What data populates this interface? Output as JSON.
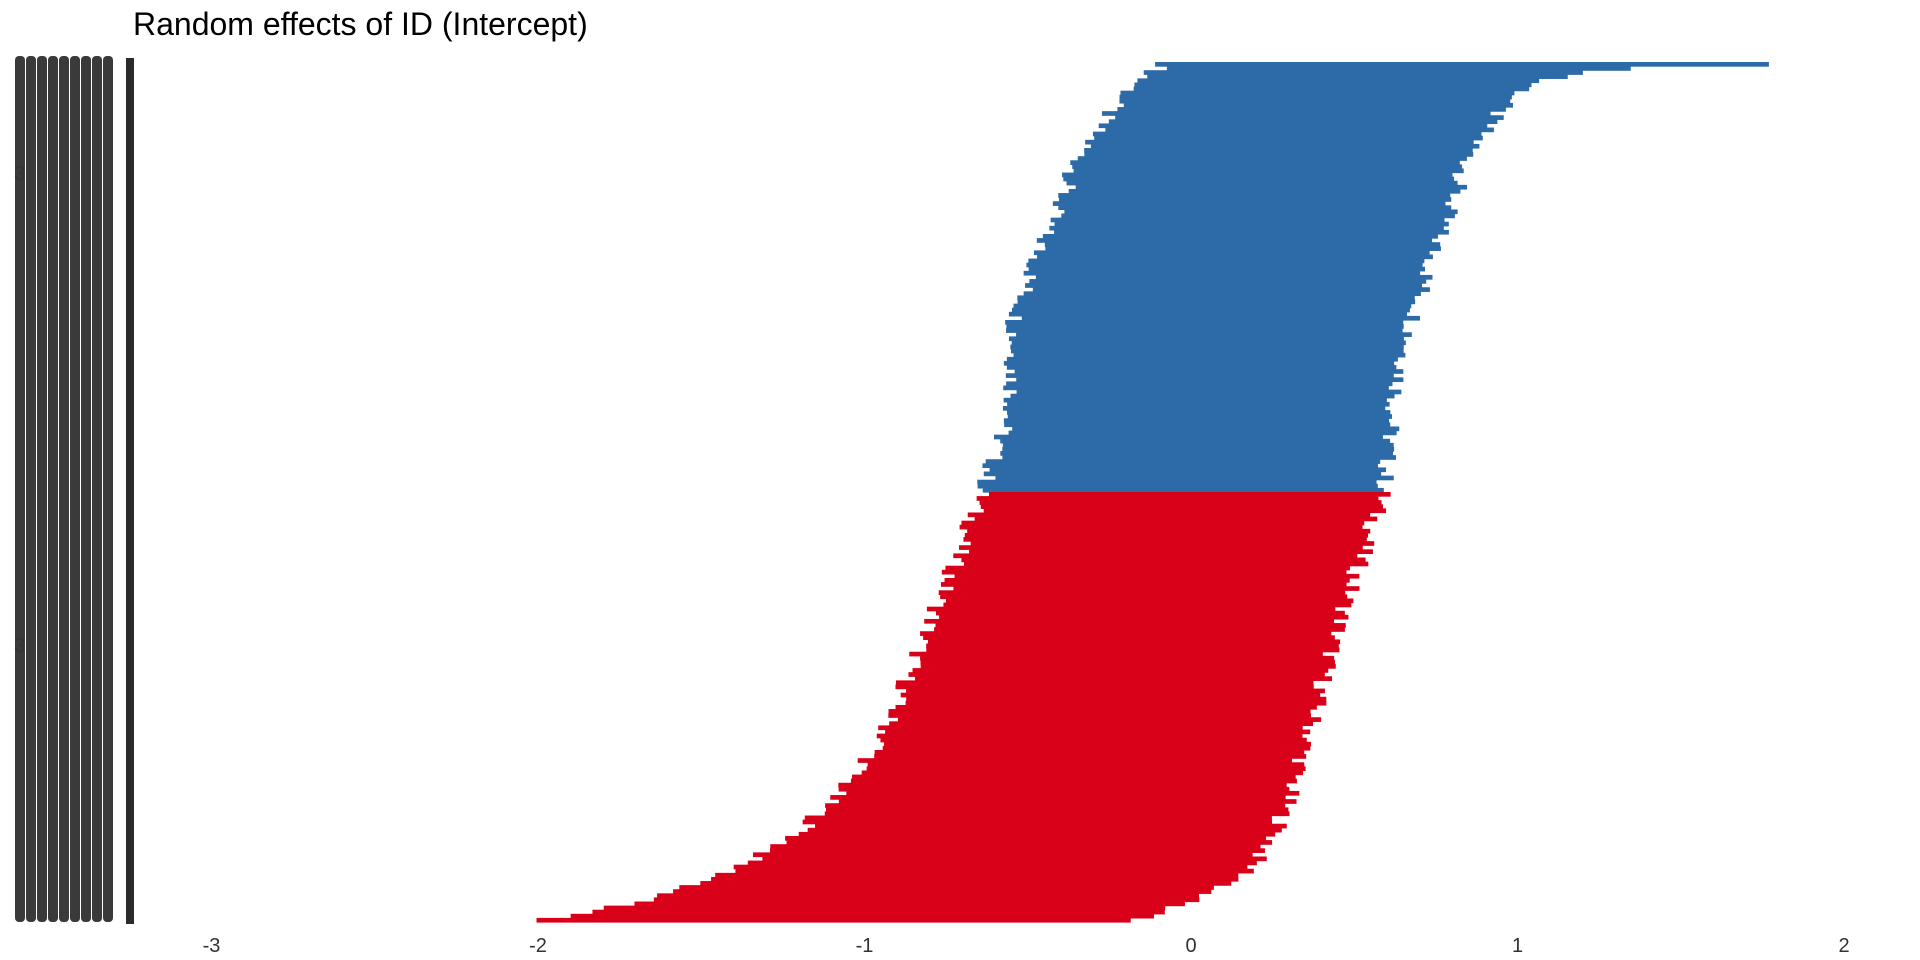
{
  "chart_data": {
    "type": "bar",
    "orientation": "horizontal",
    "title": "Random effects of ID (Intercept)",
    "xlabel": "",
    "ylabel": "",
    "xlim": [
      -3.3,
      2.05
    ],
    "x_ticks": [
      "-3",
      "-2",
      "-1",
      "0",
      "1",
      "2"
    ],
    "grid": false,
    "legend": "none",
    "sorted": "descending",
    "colors": {
      "positive": "#2d6ba8",
      "negative": "#d9001a",
      "text": "#333333",
      "ylabel_bar": "#2b2b2b"
    },
    "y_tick_labels_visible": [
      "3",
      "3"
    ],
    "series": [
      {
        "name": "",
        "profile_points": [
          [
            0.0,
            1.8
          ],
          [
            0.005,
            1.3
          ],
          [
            0.02,
            1.06
          ],
          [
            0.05,
            0.95
          ],
          [
            0.1,
            0.86
          ],
          [
            0.2,
            0.76
          ],
          [
            0.3,
            0.68
          ],
          [
            0.4,
            0.62
          ],
          [
            0.5,
            0.59
          ],
          [
            0.6,
            0.5
          ],
          [
            0.7,
            0.42
          ],
          [
            0.8,
            0.35
          ],
          [
            0.9,
            0.26
          ],
          [
            0.95,
            0.16
          ],
          [
            0.98,
            -0.02
          ],
          [
            1.0,
            -0.18
          ]
        ],
        "left_extent_points": [
          [
            0.0,
            -0.08
          ],
          [
            0.02,
            -0.16
          ],
          [
            0.05,
            -0.24
          ],
          [
            0.1,
            -0.33
          ],
          [
            0.2,
            -0.45
          ],
          [
            0.3,
            -0.54
          ],
          [
            0.4,
            -0.55
          ],
          [
            0.5,
            -0.64
          ],
          [
            0.6,
            -0.74
          ],
          [
            0.7,
            -0.85
          ],
          [
            0.8,
            -0.96
          ],
          [
            0.9,
            -1.2
          ],
          [
            0.95,
            -1.45
          ],
          [
            0.98,
            -1.7
          ],
          [
            1.0,
            -2.0
          ]
        ],
        "n_levels": 210
      }
    ]
  }
}
